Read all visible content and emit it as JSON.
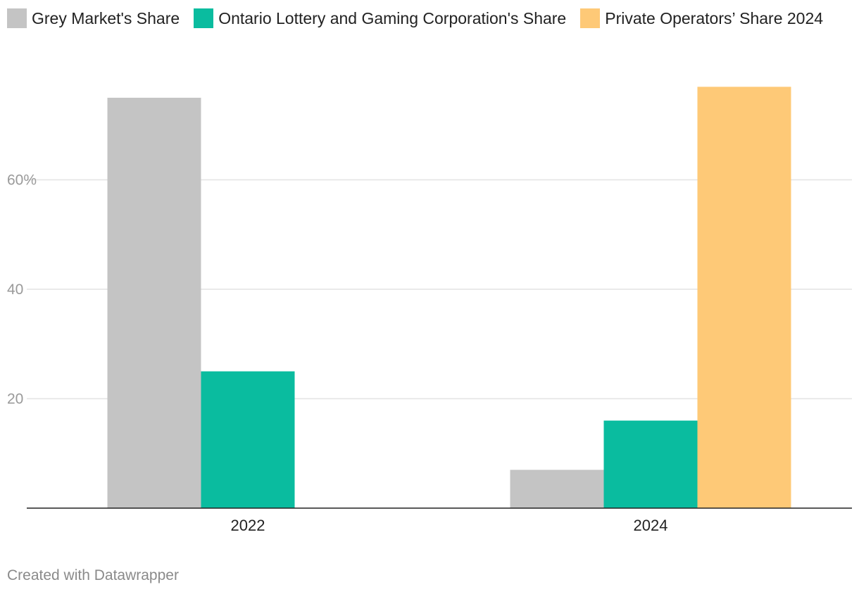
{
  "chart_data": {
    "type": "bar",
    "categories": [
      "2022",
      "2024"
    ],
    "series": [
      {
        "name": "Grey Market's Share",
        "color": "#c4c4c4",
        "values": [
          75,
          7
        ]
      },
      {
        "name": "Ontario Lottery and Gaming Corporation's Share",
        "color": "#0abc9f",
        "values": [
          25,
          16
        ]
      },
      {
        "name": "Private Operators’ Share 2024",
        "color": "#fec977",
        "values": [
          null,
          77
        ]
      }
    ],
    "yticks": [
      {
        "value": 20,
        "label": "20"
      },
      {
        "value": 40,
        "label": "40"
      },
      {
        "value": 60,
        "label": "60%"
      }
    ],
    "ylim": [
      0,
      80
    ],
    "xlabel": "",
    "ylabel": "",
    "grid": true,
    "legend_position": "top-left"
  },
  "footer": {
    "credit": "Created with Datawrapper"
  }
}
